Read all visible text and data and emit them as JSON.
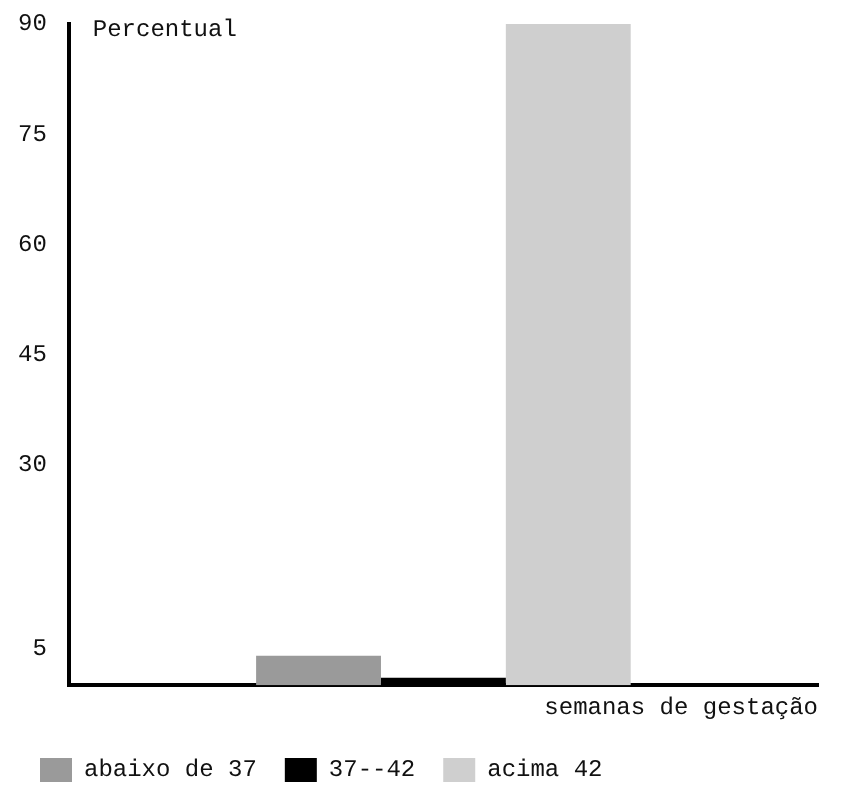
{
  "chart_data": {
    "type": "bar",
    "ylabel": "Percentual",
    "xlabel": "semanas de gestação",
    "categories": [
      null
    ],
    "series": [
      {
        "name": "abaixo de 37",
        "color": "#9a9a9a",
        "values": [
          4
        ]
      },
      {
        "name": "37--42",
        "color": "#000000",
        "values": [
          1
        ]
      },
      {
        "name": "acima 42",
        "color": "#cfcfcf",
        "values": [
          90
        ]
      }
    ],
    "ylim": [
      0,
      90
    ],
    "yticks": [
      5,
      30,
      45,
      60,
      75,
      90
    ],
    "grid": false,
    "legend": "bottom",
    "tick_labels": "y"
  }
}
